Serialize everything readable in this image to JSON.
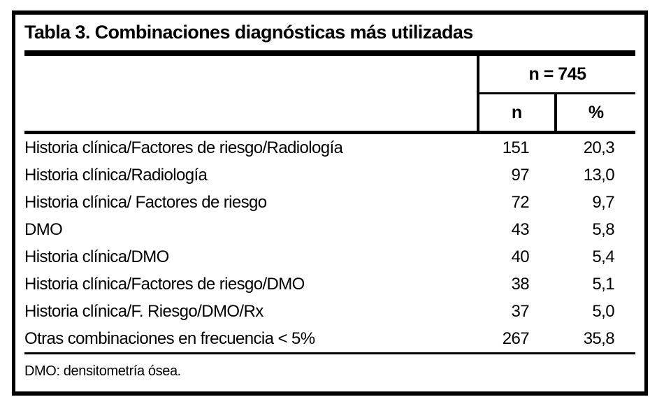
{
  "document": {
    "title": "Tabla 3. Combinaciones diagnósticas más utilizadas",
    "group_header": "n = 745",
    "columns": [
      "n",
      "%"
    ],
    "rows": [
      {
        "label": "Historia clínica/Factores de riesgo/Radiología",
        "n": "151",
        "pct": "20,3"
      },
      {
        "label": "Historia clínica/Radiología",
        "n": "97",
        "pct": "13,0"
      },
      {
        "label": "Historia clínica/ Factores de riesgo",
        "n": "72",
        "pct": "9,7"
      },
      {
        "label": "DMO",
        "n": "43",
        "pct": "5,8"
      },
      {
        "label": "Historia clínica/DMO",
        "n": "40",
        "pct": "5,4"
      },
      {
        "label": "Historia clínica/Factores de riesgo/DMO",
        "n": "38",
        "pct": "5,1"
      },
      {
        "label": "Historia clínica/F. Riesgo/DMO/Rx",
        "n": "37",
        "pct": "5,0"
      },
      {
        "label": "Otras combinaciones en frecuencia < 5%",
        "n": "267",
        "pct": "35,8"
      }
    ],
    "footnote": "DMO: densitometría ósea.",
    "colors": {
      "ink": "#000000",
      "paper": "#ffffff"
    }
  }
}
